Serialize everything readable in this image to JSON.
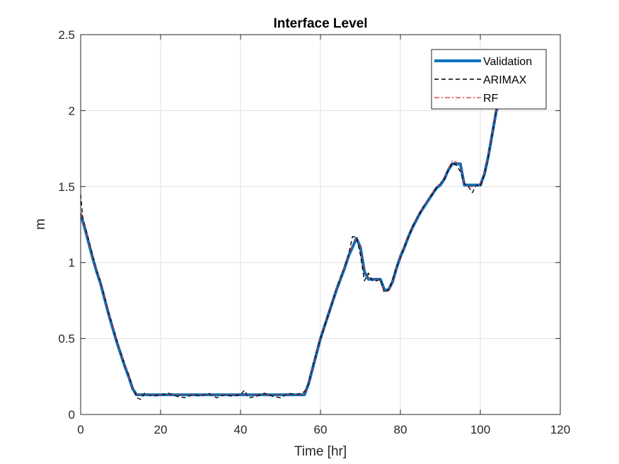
{
  "chart_data": {
    "type": "line",
    "title": "Interface Level",
    "xlabel": "Time [hr]",
    "ylabel": "m",
    "xlim": [
      0,
      120
    ],
    "ylim": [
      0,
      2.5
    ],
    "xticks": [
      0,
      20,
      40,
      60,
      80,
      100,
      120
    ],
    "yticks": [
      0,
      0.5,
      1,
      1.5,
      2,
      2.5
    ],
    "xtick_labels": [
      "0",
      "20",
      "40",
      "60",
      "80",
      "100",
      "120"
    ],
    "ytick_labels": [
      "0",
      "0.5",
      "1",
      "1.5",
      "2",
      "2.5"
    ],
    "grid": true,
    "legend_position": "top-right",
    "series": [
      {
        "name": "Validation",
        "color": "#0072BD",
        "style": "solid-thick",
        "x": [
          0,
          1,
          2,
          3,
          4,
          5,
          6,
          7,
          8,
          9,
          10,
          11,
          12,
          13,
          14,
          15,
          20,
          30,
          40,
          50,
          56,
          57,
          58,
          59,
          60,
          61,
          62,
          63,
          64,
          65,
          66,
          67,
          68,
          69,
          70,
          71,
          72,
          73,
          74,
          75,
          76,
          77,
          78,
          79,
          80,
          81,
          82,
          83,
          84,
          85,
          86,
          87,
          88,
          89,
          90,
          91,
          92,
          93,
          94,
          95,
          96,
          97,
          98,
          99,
          100,
          101,
          102,
          103,
          104,
          104.5
        ],
        "y": [
          1.32,
          1.23,
          1.13,
          1.03,
          0.94,
          0.86,
          0.76,
          0.66,
          0.57,
          0.48,
          0.4,
          0.32,
          0.25,
          0.17,
          0.13,
          0.13,
          0.13,
          0.13,
          0.13,
          0.13,
          0.13,
          0.2,
          0.3,
          0.4,
          0.5,
          0.58,
          0.66,
          0.74,
          0.82,
          0.89,
          0.96,
          1.04,
          1.1,
          1.16,
          1.1,
          0.94,
          0.89,
          0.89,
          0.89,
          0.89,
          0.82,
          0.82,
          0.87,
          0.96,
          1.04,
          1.1,
          1.17,
          1.23,
          1.28,
          1.33,
          1.37,
          1.41,
          1.45,
          1.49,
          1.51,
          1.55,
          1.61,
          1.65,
          1.65,
          1.65,
          1.51,
          1.51,
          1.51,
          1.51,
          1.51,
          1.58,
          1.7,
          1.85,
          2.0,
          2.03
        ]
      },
      {
        "name": "ARIMAX",
        "color": "#000000",
        "style": "dashed",
        "x": [
          0,
          0.5,
          1,
          2,
          3,
          4,
          5,
          6,
          7,
          8,
          9,
          10,
          11,
          12,
          13,
          14,
          15,
          16,
          18,
          20,
          22,
          24,
          26,
          28,
          30,
          32,
          34,
          36,
          38,
          40,
          41,
          42,
          44,
          46,
          48,
          50,
          52,
          54,
          56,
          57,
          58,
          59,
          60,
          61,
          62,
          63,
          64,
          65,
          66,
          67,
          68,
          69,
          70,
          71,
          72,
          73,
          74,
          75,
          76,
          77,
          78,
          79,
          80,
          81,
          82,
          83,
          84,
          85,
          86,
          87,
          88,
          89,
          90,
          91,
          92,
          93,
          94,
          95,
          96,
          97,
          98,
          99,
          100,
          101,
          102,
          103,
          104,
          104.5
        ],
        "y": [
          1.45,
          1.3,
          1.25,
          1.15,
          1.05,
          0.95,
          0.87,
          0.77,
          0.67,
          0.58,
          0.49,
          0.41,
          0.33,
          0.26,
          0.18,
          0.11,
          0.1,
          0.14,
          0.12,
          0.13,
          0.14,
          0.12,
          0.11,
          0.13,
          0.12,
          0.14,
          0.11,
          0.13,
          0.12,
          0.13,
          0.16,
          0.11,
          0.12,
          0.14,
          0.12,
          0.11,
          0.14,
          0.13,
          0.15,
          0.2,
          0.31,
          0.41,
          0.5,
          0.58,
          0.66,
          0.74,
          0.83,
          0.9,
          0.97,
          1.05,
          1.17,
          1.17,
          1.05,
          0.88,
          0.93,
          0.88,
          0.88,
          0.89,
          0.8,
          0.82,
          0.88,
          0.97,
          1.03,
          1.1,
          1.17,
          1.23,
          1.29,
          1.33,
          1.38,
          1.42,
          1.45,
          1.49,
          1.52,
          1.55,
          1.61,
          1.66,
          1.64,
          1.6,
          1.52,
          1.5,
          1.46,
          1.51,
          1.5,
          1.58,
          1.7,
          1.85,
          2.0,
          2.03
        ]
      },
      {
        "name": "RF",
        "color": "#D62728",
        "style": "dashdot",
        "x": [
          0,
          1,
          2,
          3,
          4,
          5,
          6,
          7,
          8,
          9,
          10,
          11,
          12,
          13,
          14,
          15,
          20,
          30,
          40,
          50,
          56,
          57,
          58,
          59,
          60,
          61,
          62,
          63,
          64,
          65,
          66,
          67,
          68,
          69,
          70,
          71,
          72,
          73,
          74,
          75,
          76,
          77,
          78,
          79,
          80,
          81,
          82,
          83,
          84,
          85,
          86,
          87,
          88,
          89,
          90,
          91,
          92,
          93,
          94,
          95,
          96,
          97,
          98,
          99,
          100,
          101,
          102,
          103,
          104,
          104.5
        ],
        "y": [
          1.33,
          1.24,
          1.14,
          1.04,
          0.95,
          0.87,
          0.77,
          0.67,
          0.58,
          0.49,
          0.41,
          0.33,
          0.26,
          0.18,
          0.13,
          0.13,
          0.13,
          0.13,
          0.13,
          0.13,
          0.13,
          0.21,
          0.31,
          0.41,
          0.51,
          0.59,
          0.67,
          0.75,
          0.83,
          0.9,
          0.97,
          1.05,
          1.11,
          1.16,
          1.11,
          0.95,
          0.9,
          0.89,
          0.89,
          0.88,
          0.81,
          0.81,
          0.86,
          0.96,
          1.04,
          1.11,
          1.18,
          1.24,
          1.29,
          1.34,
          1.38,
          1.42,
          1.46,
          1.5,
          1.52,
          1.56,
          1.62,
          1.67,
          1.66,
          1.64,
          1.51,
          1.5,
          1.5,
          1.51,
          1.52,
          1.59,
          1.71,
          1.86,
          2.01,
          2.04
        ]
      }
    ]
  }
}
